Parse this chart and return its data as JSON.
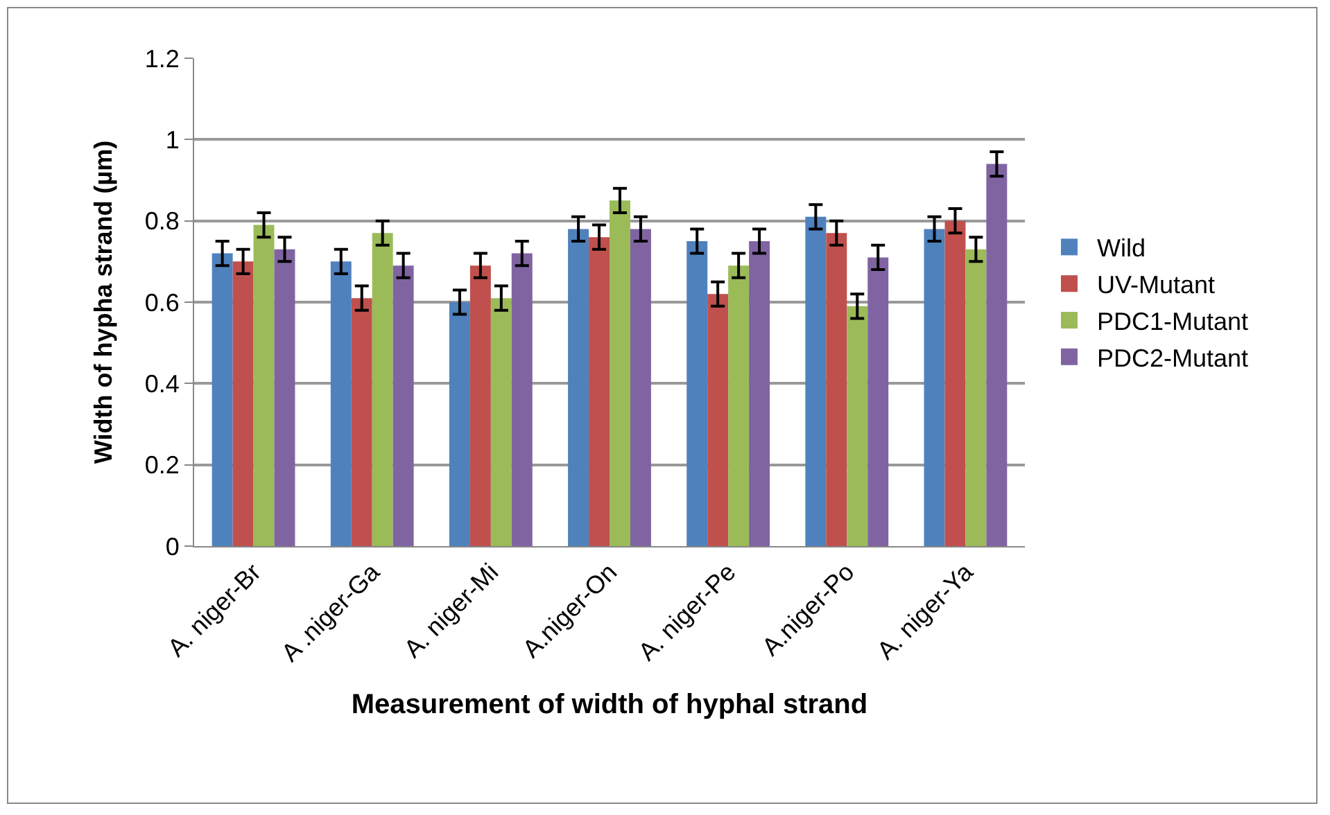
{
  "chart_data": {
    "type": "bar",
    "xlabel": "Measurement of width of hyphal strand",
    "ylabel": "Width of hypha strand (µm)",
    "categories": [
      "A. niger-Br",
      "A .niger-Ga",
      "A. niger-Mi",
      "A.niger-On",
      "A. niger-Pe",
      "A.niger-Po",
      "A. niger-Ya"
    ],
    "series": [
      {
        "name": "Wild",
        "color": "#4f81bd",
        "values": [
          0.72,
          0.7,
          0.6,
          0.78,
          0.75,
          0.81,
          0.78
        ],
        "errors": [
          0.03,
          0.03,
          0.03,
          0.03,
          0.03,
          0.03,
          0.03
        ]
      },
      {
        "name": "UV-Mutant",
        "color": "#c0504d",
        "values": [
          0.7,
          0.61,
          0.69,
          0.76,
          0.62,
          0.77,
          0.8
        ],
        "errors": [
          0.03,
          0.03,
          0.03,
          0.03,
          0.03,
          0.03,
          0.03
        ]
      },
      {
        "name": "PDC1-Mutant",
        "color": "#9bbb59",
        "values": [
          0.79,
          0.77,
          0.61,
          0.85,
          0.69,
          0.59,
          0.73
        ],
        "errors": [
          0.03,
          0.03,
          0.03,
          0.03,
          0.03,
          0.03,
          0.03
        ]
      },
      {
        "name": "PDC2-Mutant",
        "color": "#8064a2",
        "values": [
          0.73,
          0.69,
          0.72,
          0.78,
          0.75,
          0.71,
          0.94
        ],
        "errors": [
          0.03,
          0.03,
          0.03,
          0.03,
          0.03,
          0.03,
          0.03
        ]
      }
    ],
    "ylim": [
      0,
      1.2
    ],
    "yticks": [
      0,
      0.2,
      0.4,
      0.6,
      0.8,
      1,
      1.2
    ],
    "grid": "y",
    "legend": "right"
  }
}
